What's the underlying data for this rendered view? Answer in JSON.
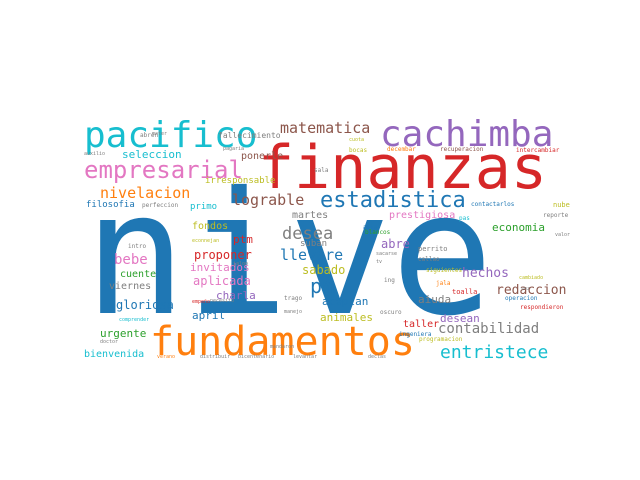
{
  "palette": {
    "blue": "#1f77b4",
    "orange": "#ff7f0e",
    "green": "#2ca02c",
    "red": "#d62728",
    "purple": "#9467bd",
    "brown": "#8c564b",
    "pink": "#e377c2",
    "gray": "#7f7f7f",
    "olive": "#bcbd22",
    "cyan": "#17becf"
  },
  "words": [
    {
      "text": "nive",
      "color": "blue"
    },
    {
      "text": "finanzas",
      "color": "red"
    },
    {
      "text": "fundamentos",
      "color": "orange"
    },
    {
      "text": "pacifico",
      "color": "cyan"
    },
    {
      "text": "cachimba",
      "color": "purple"
    },
    {
      "text": "empresarial",
      "color": "pink"
    },
    {
      "text": "estadistica",
      "color": "blue"
    },
    {
      "text": "matematica",
      "color": "brown"
    },
    {
      "text": "nivelacion",
      "color": "orange"
    },
    {
      "text": "entristece",
      "color": "cyan"
    },
    {
      "text": "pm",
      "color": "blue"
    },
    {
      "text": "desea",
      "color": "gray"
    },
    {
      "text": "lograble",
      "color": "brown"
    },
    {
      "text": "llevare",
      "color": "blue"
    },
    {
      "text": "contabilidad",
      "color": "gray"
    },
    {
      "text": "redaccion",
      "color": "brown"
    },
    {
      "text": "hechos",
      "color": "purple"
    },
    {
      "text": "economia",
      "color": "green"
    },
    {
      "text": "bebe",
      "color": "pink"
    },
    {
      "text": "seleccion",
      "color": "cyan"
    },
    {
      "text": "ponerle",
      "color": "brown"
    },
    {
      "text": "filosofia",
      "color": "blue"
    },
    {
      "text": "primo",
      "color": "cyan"
    },
    {
      "text": "irresponsable",
      "color": "olive"
    },
    {
      "text": "fondos",
      "color": "olive"
    },
    {
      "text": "martes",
      "color": "gray"
    },
    {
      "text": "prestigiosa",
      "color": "pink"
    },
    {
      "text": "ptm",
      "color": "red"
    },
    {
      "text": "suban",
      "color": "gray"
    },
    {
      "text": "abre",
      "color": "purple"
    },
    {
      "text": "proponer",
      "color": "red"
    },
    {
      "text": "invitados",
      "color": "pink"
    },
    {
      "text": "sabado",
      "color": "olive"
    },
    {
      "text": "cuente",
      "color": "green"
    },
    {
      "text": "viernes",
      "color": "gray"
    },
    {
      "text": "aplicada",
      "color": "pink"
    },
    {
      "text": "gloriosa",
      "color": "blue"
    },
    {
      "text": "charla",
      "color": "purple"
    },
    {
      "text": "aceptan",
      "color": "blue"
    },
    {
      "text": "aiuda",
      "color": "gray"
    },
    {
      "text": "april",
      "color": "blue"
    },
    {
      "text": "animales",
      "color": "olive"
    },
    {
      "text": "desean",
      "color": "purple"
    },
    {
      "text": "urgente",
      "color": "green"
    },
    {
      "text": "taller",
      "color": "red"
    },
    {
      "text": "bienvenida",
      "color": "cyan"
    },
    {
      "text": "fallecimiento",
      "color": "gray"
    },
    {
      "text": "abren",
      "color": "gray"
    },
    {
      "text": "perfeccion",
      "color": "gray"
    },
    {
      "text": "contactarlos",
      "color": "blue"
    },
    {
      "text": "recuperacion",
      "color": "brown"
    },
    {
      "text": "intercambiar",
      "color": "red"
    },
    {
      "text": "decembar",
      "color": "orange"
    },
    {
      "text": "pagaria",
      "color": "gray"
    },
    {
      "text": "bocas",
      "color": "olive"
    },
    {
      "text": "cuota",
      "color": "olive"
    },
    {
      "text": "sala",
      "color": "gray"
    },
    {
      "text": "reporte",
      "color": "gray"
    },
    {
      "text": "valor",
      "color": "gray"
    },
    {
      "text": "nube",
      "color": "olive"
    },
    {
      "text": "alta",
      "color": "blue"
    },
    {
      "text": "blancos",
      "color": "green"
    },
    {
      "text": "perrito",
      "color": "gray"
    },
    {
      "text": "callao",
      "color": "gray"
    },
    {
      "text": "siguientes",
      "color": "olive"
    },
    {
      "text": "toalla",
      "color": "red"
    },
    {
      "text": "ing",
      "color": "gray"
    },
    {
      "text": "jala",
      "color": "orange"
    },
    {
      "text": "cambiado",
      "color": "olive"
    },
    {
      "text": "operacion",
      "color": "blue"
    },
    {
      "text": "respondieron",
      "color": "red"
    },
    {
      "text": "programacion",
      "color": "olive"
    },
    {
      "text": "ingeniera",
      "color": "blue"
    },
    {
      "text": "oscuro",
      "color": "gray"
    },
    {
      "text": "sacarse",
      "color": "gray"
    },
    {
      "text": "pas",
      "color": "cyan"
    },
    {
      "text": "necesito",
      "color": "gray"
    },
    {
      "text": "empeño",
      "color": "red"
    },
    {
      "text": "trago",
      "color": "gray"
    },
    {
      "text": "manejo",
      "color": "gray"
    },
    {
      "text": "mandaron",
      "color": "gray"
    },
    {
      "text": "intro",
      "color": "gray"
    },
    {
      "text": "econnejan",
      "color": "olive"
    },
    {
      "text": "comprender",
      "color": "cyan"
    },
    {
      "text": "doctor",
      "color": "gray"
    },
    {
      "text": "verano",
      "color": "orange"
    },
    {
      "text": "distribuir",
      "color": "gray"
    },
    {
      "text": "bicentenario",
      "color": "gray"
    },
    {
      "text": "levantar",
      "color": "gray"
    },
    {
      "text": "declas",
      "color": "gray"
    },
    {
      "text": "auxilio",
      "color": "gray"
    },
    {
      "text": "mater",
      "color": "gray"
    },
    {
      "text": "jaloo",
      "color": "gray"
    },
    {
      "text": "tv",
      "color": "gray"
    },
    {
      "text": "vez",
      "color": "gray"
    }
  ]
}
